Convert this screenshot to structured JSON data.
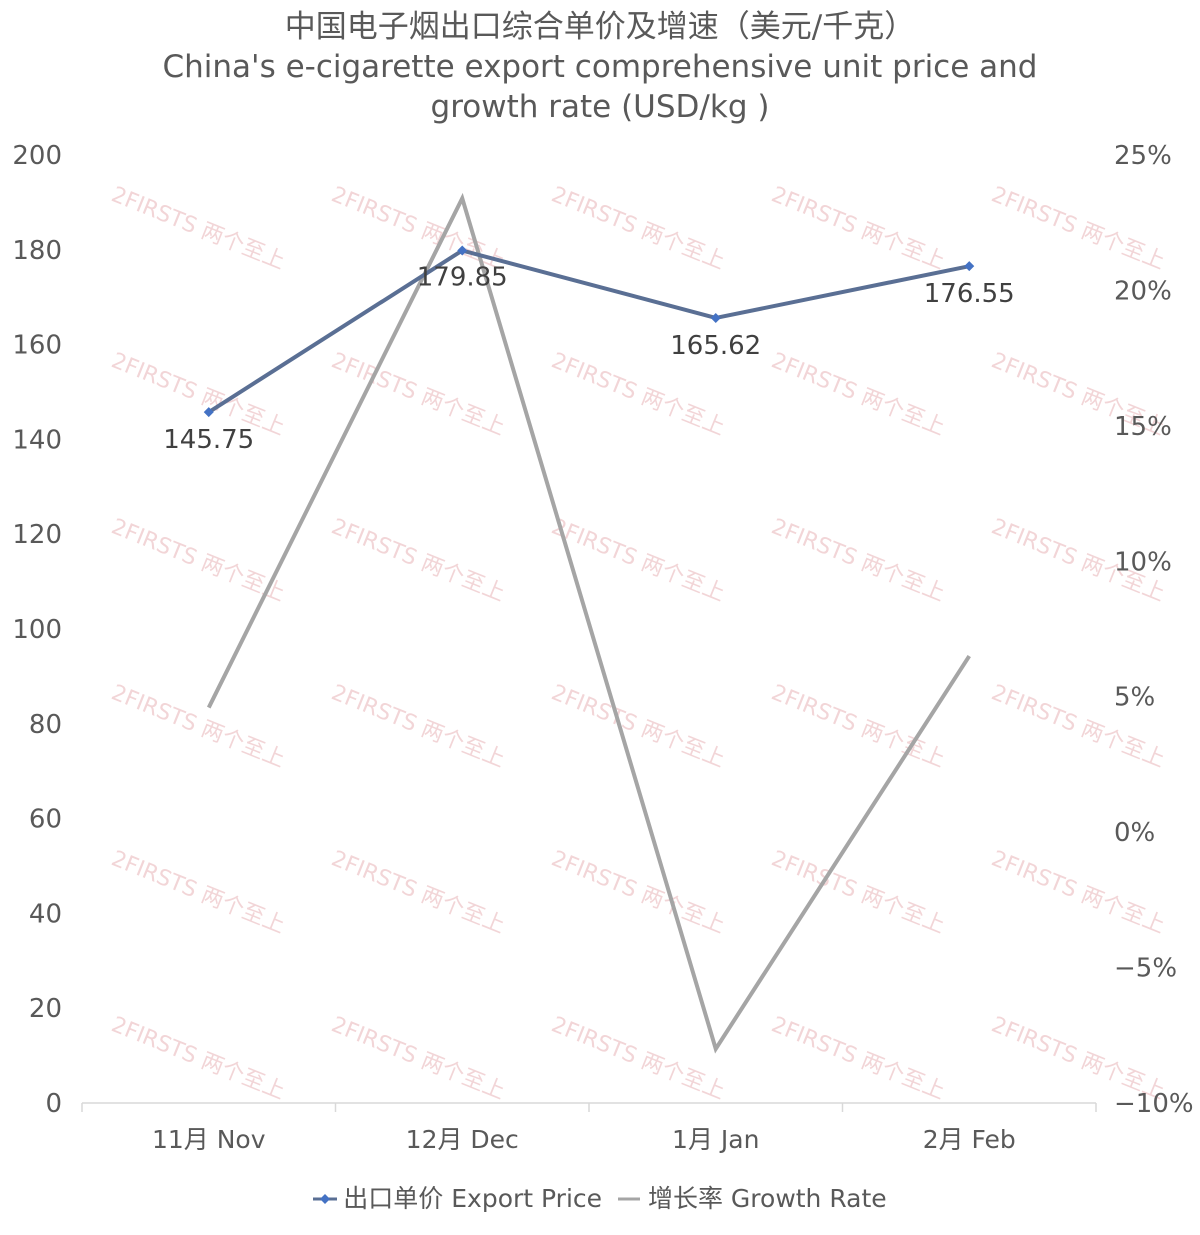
{
  "title_line1": "中国电子烟出口综合单价及增速（美元/千克）",
  "title_line2": "China's e-cigarette export comprehensive unit price and",
  "title_line3": "growth rate (USD/kg )",
  "watermark": "2FIRSTS 两个至上",
  "colors": {
    "price": "#5a6f94",
    "price_marker": "#4472c4",
    "growth": "#a5a5a5",
    "axis": "#d9d9d9",
    "text": "#595959",
    "watermark": "#e8b4b8"
  },
  "chart_data": {
    "type": "line",
    "categories": [
      "11月 Nov",
      "12月 Dec",
      "1月 Jan",
      "2月 Feb"
    ],
    "series": [
      {
        "name": "出口单价 Export Price",
        "axis": "left",
        "values": [
          145.75,
          179.85,
          165.62,
          176.55
        ],
        "data_labels": [
          "145.75",
          "179.85",
          "165.62",
          "176.55"
        ],
        "marker": "diamond"
      },
      {
        "name": "增长率 Growth Rate",
        "axis": "right",
        "values": [
          4.6,
          23.4,
          -8.0,
          6.5
        ],
        "marker": "none"
      }
    ],
    "y_left": {
      "min": 0,
      "max": 200,
      "step": 20,
      "ticks": [
        "0",
        "20",
        "40",
        "60",
        "80",
        "100",
        "120",
        "140",
        "160",
        "180",
        "200"
      ]
    },
    "y_right": {
      "min": -10,
      "max": 25,
      "step": 5,
      "ticks": [
        "−10%",
        "−5%",
        "0%",
        "5%",
        "10%",
        "15%",
        "20%",
        "25%"
      ]
    },
    "grid": false,
    "legend_position": "bottom"
  },
  "legend": {
    "price_label": "出口单价 Export Price",
    "growth_label": "增长率 Growth Rate"
  }
}
